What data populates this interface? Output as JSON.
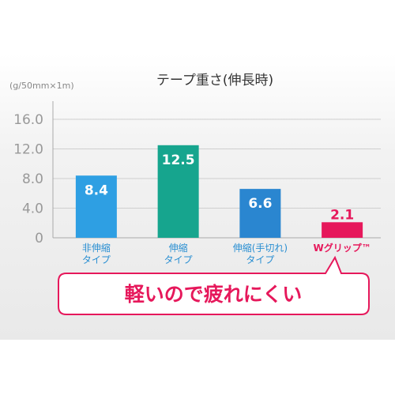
{
  "chart_data": {
    "type": "bar",
    "title": "テープ重さ(伸長時)",
    "unit_label": "(g/50mm×1m)",
    "categories": [
      [
        "非伸縮",
        "タイプ"
      ],
      [
        "伸縮",
        "タイプ"
      ],
      [
        "伸縮(手切れ)",
        "タイプ"
      ],
      [
        "Wグリップ™"
      ]
    ],
    "values": [
      8.4,
      12.5,
      6.6,
      2.1
    ],
    "value_labels": [
      "8.4",
      "12.5",
      "6.6",
      "2.1"
    ],
    "y_ticks": [
      "16.0",
      "12.0",
      "8.0",
      "4.0",
      "0"
    ],
    "ylim": [
      0,
      16
    ],
    "grid": true,
    "bar_colors": [
      "#2e9fe3",
      "#16a58e",
      "#2a86d0",
      "#e6185b"
    ],
    "highlight_index": 3,
    "callout": "軽いので疲れにくい"
  }
}
